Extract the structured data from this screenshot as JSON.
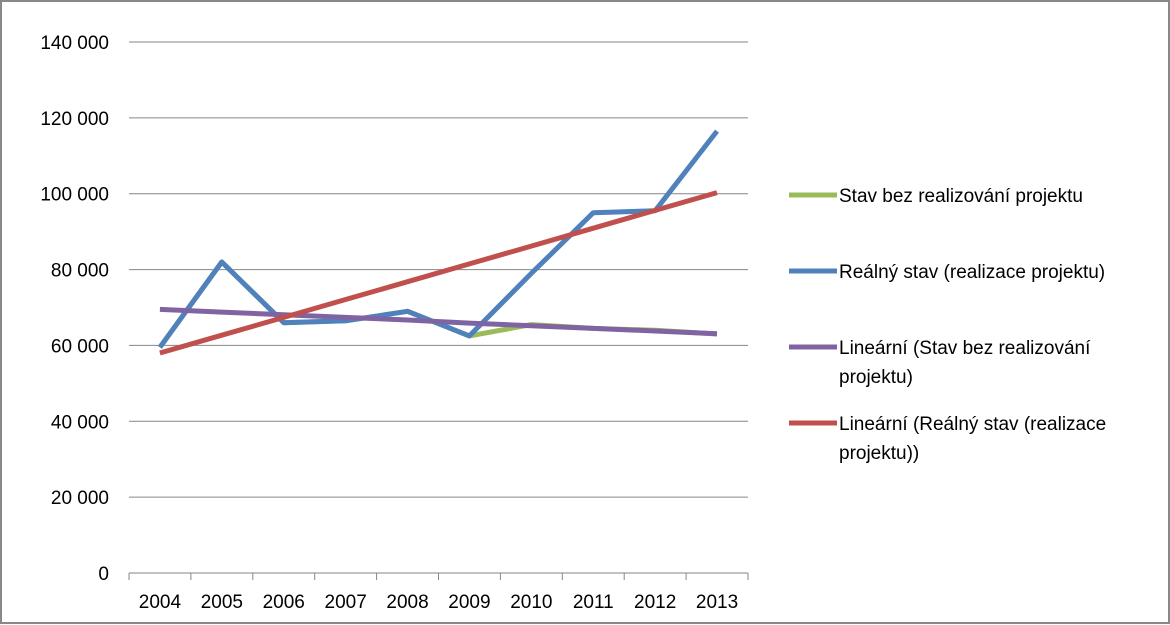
{
  "chart_data": {
    "type": "line",
    "title": "",
    "xlabel": "",
    "ylabel": "",
    "categories": [
      "2004",
      "2005",
      "2006",
      "2007",
      "2008",
      "2009",
      "2010",
      "2011",
      "2012",
      "2013"
    ],
    "ylim": [
      0,
      140000
    ],
    "yticks": [
      0,
      20000,
      40000,
      60000,
      80000,
      100000,
      120000,
      140000
    ],
    "ytick_labels": [
      "0",
      "20 000",
      "40 000",
      "60 000",
      "80 000",
      "100 000",
      "120 000",
      "140 000"
    ],
    "grid": "horizontal",
    "legend_position": "right",
    "series": [
      {
        "name": "Stav bez realizování projektu",
        "color": "#9BBB59",
        "values": [
          59500,
          82000,
          66000,
          66500,
          69000,
          62500,
          65500,
          64500,
          64000,
          63000
        ]
      },
      {
        "name": "Reálný stav (realizace projektu)",
        "color": "#4F81BD",
        "values": [
          59500,
          82000,
          66000,
          66500,
          69000,
          62500,
          79000,
          95000,
          95500,
          116500
        ]
      },
      {
        "name": "Lineární (Stav bez realizování projektu)",
        "color": "#8064A2",
        "trendline": true,
        "values": [
          69500,
          68800,
          68100,
          67400,
          66700,
          65900,
          65200,
          64500,
          63800,
          63100
        ]
      },
      {
        "name": "Lineární (Reálný stav (realizace projektu))",
        "color": "#C0504D",
        "trendline": true,
        "values": [
          58000,
          62700,
          67400,
          72100,
          76800,
          81500,
          86200,
          90900,
          95600,
          100300
        ]
      }
    ]
  }
}
